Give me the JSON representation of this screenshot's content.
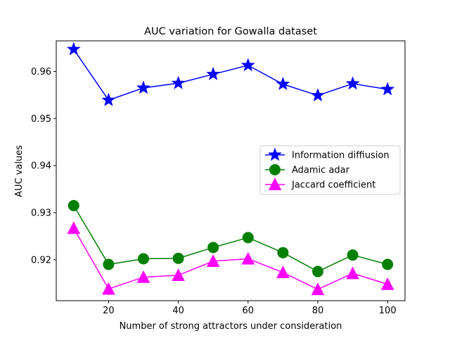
{
  "chart_data": {
    "type": "line",
    "title": "AUC variation for Gowalla dataset",
    "xlabel": "Number of strong attractors under consideration",
    "ylabel": "AUC values",
    "x": [
      10,
      20,
      30,
      40,
      50,
      60,
      70,
      80,
      90,
      100
    ],
    "xlim": [
      5,
      105
    ],
    "ylim": [
      0.9113,
      0.9665
    ],
    "xticks": [
      20,
      40,
      60,
      80,
      100
    ],
    "xtick_labels": [
      "20",
      "40",
      "60",
      "80",
      "100"
    ],
    "yticks": [
      0.92,
      0.93,
      0.94,
      0.95,
      0.96
    ],
    "ytick_labels": [
      "0.92",
      "0.93",
      "0.94",
      "0.95",
      "0.96"
    ],
    "grid": false,
    "legend_position": "center-right",
    "series": [
      {
        "name": "Information diffiusion",
        "color": "#0000ff",
        "marker": "star",
        "values": [
          0.9647,
          0.9539,
          0.9565,
          0.9575,
          0.9594,
          0.9613,
          0.9573,
          0.9549,
          0.9574,
          0.9562
        ]
      },
      {
        "name": "Adamic adar",
        "color": "#008000",
        "marker": "circle",
        "values": [
          0.9315,
          0.919,
          0.9202,
          0.9203,
          0.9226,
          0.9247,
          0.9215,
          0.9175,
          0.921,
          0.919
        ]
      },
      {
        "name": "Jaccard coefficient",
        "color": "#ff00ff",
        "marker": "triangle",
        "values": [
          0.9267,
          0.9138,
          0.9163,
          0.9167,
          0.9197,
          0.9202,
          0.9173,
          0.9137,
          0.9171,
          0.9148
        ]
      }
    ]
  }
}
